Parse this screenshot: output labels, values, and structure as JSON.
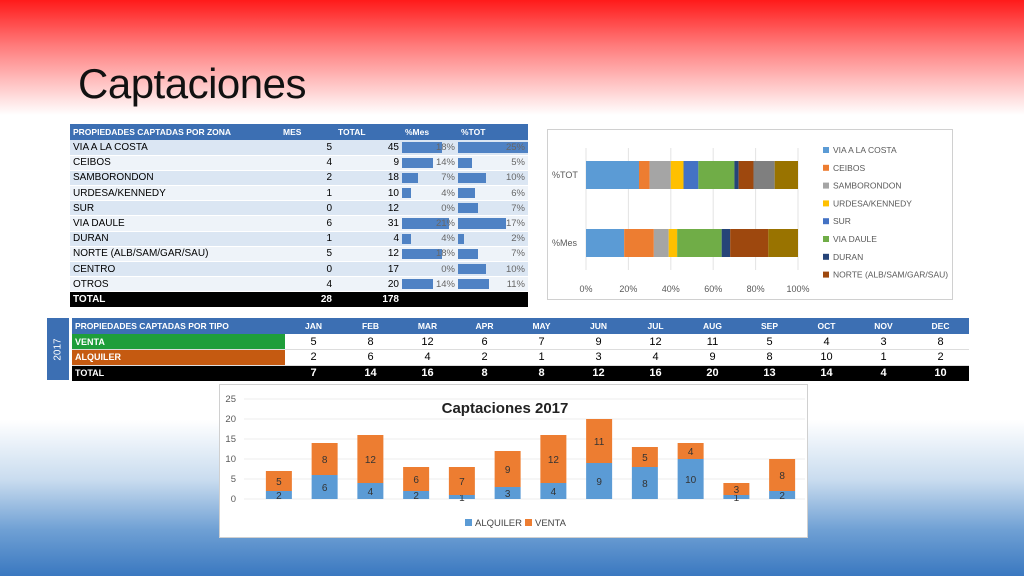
{
  "slide_title": "Captaciones",
  "zone_table": {
    "headers": [
      "PROPIEDADES CAPTADAS POR ZONA",
      "MES",
      "TOTAL",
      "%Mes",
      "%TOT"
    ],
    "rows": [
      {
        "zone": "VIA A LA COSTA",
        "mes": "5",
        "total": "45",
        "pct_mes": "18%",
        "pct_tot": "25%"
      },
      {
        "zone": "CEIBOS",
        "mes": "4",
        "total": "9",
        "pct_mes": "14%",
        "pct_tot": "5%"
      },
      {
        "zone": "SAMBORONDON",
        "mes": "2",
        "total": "18",
        "pct_mes": "7%",
        "pct_tot": "10%"
      },
      {
        "zone": "URDESA/KENNEDY",
        "mes": "1",
        "total": "10",
        "pct_mes": "4%",
        "pct_tot": "6%"
      },
      {
        "zone": "SUR",
        "mes": "0",
        "total": "12",
        "pct_mes": "0%",
        "pct_tot": "7%"
      },
      {
        "zone": "VIA DAULE",
        "mes": "6",
        "total": "31",
        "pct_mes": "21%",
        "pct_tot": "17%"
      },
      {
        "zone": "DURAN",
        "mes": "1",
        "total": "4",
        "pct_mes": "4%",
        "pct_tot": "2%"
      },
      {
        "zone": "NORTE (ALB/SAM/GAR/SAU)",
        "mes": "5",
        "total": "12",
        "pct_mes": "18%",
        "pct_tot": "7%"
      },
      {
        "zone": "CENTRO",
        "mes": "0",
        "total": "17",
        "pct_mes": "0%",
        "pct_tot": "10%"
      },
      {
        "zone": "OTROS",
        "mes": "4",
        "total": "20",
        "pct_mes": "14%",
        "pct_tot": "11%"
      }
    ],
    "total_row": {
      "label": "TOTAL",
      "mes": "28",
      "total": "178"
    }
  },
  "type_table": {
    "year": "2017",
    "header_label": "PROPIEDADES CAPTADAS POR TIPO",
    "months": [
      "JAN",
      "FEB",
      "MAR",
      "APR",
      "MAY",
      "JUN",
      "JUL",
      "AUG",
      "SEP",
      "OCT",
      "NOV",
      "DEC"
    ],
    "venta": {
      "label": "VENTA",
      "values": [
        5,
        8,
        12,
        6,
        7,
        9,
        12,
        11,
        5,
        4,
        3,
        8
      ]
    },
    "alquiler": {
      "label": "ALQUILER",
      "values": [
        2,
        6,
        4,
        2,
        1,
        3,
        4,
        9,
        8,
        10,
        1,
        2
      ]
    },
    "total": {
      "label": "TOTAL",
      "values": [
        7,
        14,
        16,
        8,
        8,
        12,
        16,
        20,
        13,
        14,
        4,
        10
      ]
    }
  },
  "chart_data": [
    {
      "type": "bar",
      "orientation": "horizontal",
      "stacked": "percent",
      "title": "",
      "categories": [
        "%TOT",
        "%Mes"
      ],
      "xlim": [
        0,
        100
      ],
      "x_ticks": [
        "0%",
        "20%",
        "40%",
        "60%",
        "80%",
        "100%"
      ],
      "legend_position": "right",
      "series": [
        {
          "name": "VIA A LA COSTA",
          "color": "#5b9bd5",
          "values": [
            25,
            18
          ]
        },
        {
          "name": "CEIBOS",
          "color": "#ed7d31",
          "values": [
            5,
            14
          ]
        },
        {
          "name": "SAMBORONDON",
          "color": "#a5a5a5",
          "values": [
            10,
            7
          ]
        },
        {
          "name": "URDESA/KENNEDY",
          "color": "#ffc000",
          "values": [
            6,
            4
          ]
        },
        {
          "name": "SUR",
          "color": "#4472c4",
          "values": [
            7,
            0
          ]
        },
        {
          "name": "VIA DAULE",
          "color": "#70ad47",
          "values": [
            17,
            21
          ]
        },
        {
          "name": "DURAN",
          "color": "#264478",
          "values": [
            2,
            4
          ]
        },
        {
          "name": "NORTE (ALB/SAM/GAR/SAU)",
          "color": "#9e480e",
          "values": [
            7,
            18
          ]
        },
        {
          "name": "",
          "color": "#7f7f7f",
          "values": [
            10,
            0
          ]
        },
        {
          "name": "",
          "color": "#997300",
          "values": [
            11,
            14
          ]
        }
      ]
    },
    {
      "type": "bar",
      "stacked": "normal",
      "title": "Captaciones 2017",
      "categories": [
        "JAN",
        "FEB",
        "MAR",
        "APR",
        "MAY",
        "JUN",
        "JUL",
        "AUG",
        "SEP",
        "OCT",
        "NOV",
        "DEC"
      ],
      "ylim": [
        0,
        25
      ],
      "y_ticks": [
        0,
        5,
        10,
        15,
        20,
        25
      ],
      "legend_position": "bottom",
      "series": [
        {
          "name": "ALQUILER",
          "color": "#5b9bd5",
          "values": [
            2,
            6,
            4,
            2,
            1,
            3,
            4,
            9,
            8,
            10,
            1,
            2
          ]
        },
        {
          "name": "VENTA",
          "color": "#ed7d31",
          "values": [
            5,
            8,
            12,
            6,
            7,
            9,
            12,
            11,
            5,
            4,
            3,
            8
          ]
        }
      ]
    }
  ]
}
